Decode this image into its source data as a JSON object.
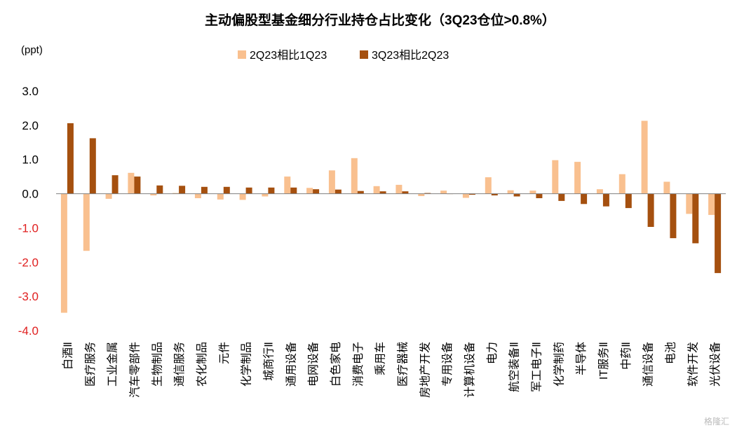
{
  "chart_data": {
    "type": "bar",
    "title": "主动偏股型基金细分行业持仓占比变化（3Q23仓位>0.8%）",
    "unit_label": "(ppt)",
    "ylim": [
      -4.0,
      3.0
    ],
    "yticks": [
      "3.0",
      "2.0",
      "1.0",
      "0.0",
      "-1.0",
      "-2.0",
      "-3.0",
      "-4.0"
    ],
    "grid": false,
    "legend_position": "top",
    "categories": [
      "白酒Ⅱ",
      "医疗服务",
      "工业金属",
      "汽车零部件",
      "生物制品",
      "通信服务",
      "农化制品",
      "元件",
      "化学制品",
      "城商行Ⅱ",
      "通用设备",
      "电网设备",
      "白色家电",
      "消费电子",
      "乘用车",
      "医疗器械",
      "房地产开发",
      "专用设备",
      "计算机设备",
      "电力",
      "航空装备Ⅱ",
      "军工电子Ⅱ",
      "化学制药",
      "半导体",
      "IT服务Ⅱ",
      "中药Ⅱ",
      "通信设备",
      "电池",
      "软件开发",
      "光伏设备"
    ],
    "series": [
      {
        "name": "2Q23相比1Q23",
        "color": "#F9C08F",
        "values": [
          -3.48,
          -1.67,
          -0.15,
          0.61,
          -0.05,
          0.02,
          -0.13,
          -0.17,
          -0.18,
          -0.08,
          0.5,
          0.17,
          0.68,
          1.04,
          0.22,
          0.26,
          -0.07,
          0.09,
          -0.12,
          0.48,
          0.1,
          0.09,
          0.98,
          0.93,
          0.13,
          0.57,
          2.13,
          0.35,
          -0.59,
          -0.62
        ]
      },
      {
        "name": "3Q23相比2Q23",
        "color": "#A5500F",
        "values": [
          2.06,
          1.62,
          0.54,
          0.5,
          0.24,
          0.23,
          0.2,
          0.2,
          0.18,
          0.18,
          0.18,
          0.13,
          0.12,
          0.08,
          0.07,
          0.07,
          0.02,
          0.0,
          -0.03,
          -0.05,
          -0.08,
          -0.13,
          -0.21,
          -0.3,
          -0.37,
          -0.42,
          -0.97,
          -1.3,
          -1.45,
          -2.32
        ]
      }
    ]
  },
  "colors": {
    "positive_tick": "#000000",
    "negative_tick": "#E02020"
  },
  "watermark": "格隆汇"
}
